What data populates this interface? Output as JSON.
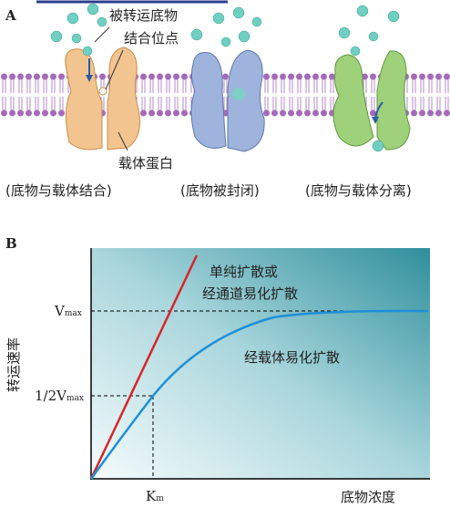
{
  "panel_a": {
    "label": "A",
    "callouts": [
      "被转运底物",
      "结合位点",
      "载体蛋白"
    ],
    "captions": [
      "(底物与载体结合)",
      "(底物被封闭)",
      "(底物与载体分离)"
    ]
  },
  "panel_b": {
    "label": "B",
    "y_axis_label": "转运速率",
    "x_axis_label": "底物浓度",
    "vmax": {
      "main": "V",
      "sub": "max"
    },
    "half_vmax": {
      "main": "1/2V",
      "sub": "max"
    },
    "km": {
      "main": "K",
      "sub": "m"
    },
    "line_labels": [
      "单纯扩散或",
      "经通道易化扩散",
      "经载体易化扩散"
    ]
  }
}
